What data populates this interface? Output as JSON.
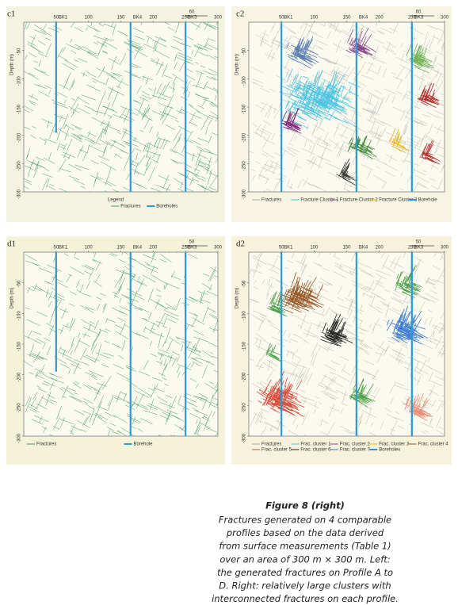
{
  "panels": [
    {
      "label": "c1",
      "x_ticks": [
        50,
        100,
        150,
        200,
        250,
        300
      ],
      "boreholes": [
        "BK1",
        "BK4",
        "BK3"
      ],
      "y_label": "Depth (m)",
      "y_ticks": [
        -50,
        -100,
        -150,
        -200,
        -250,
        -300
      ],
      "scale_label": "60",
      "legend_title": "Legend",
      "legend": [
        "Fractures",
        "Boreholes"
      ]
    },
    {
      "label": "c2",
      "x_ticks": [
        50,
        100,
        150,
        200,
        250,
        300
      ],
      "boreholes": [
        "BK1",
        "BK4",
        "BK3"
      ],
      "y_label": "Depth (m)",
      "y_ticks": [
        -50,
        -100,
        -150,
        -200,
        -250,
        -300
      ],
      "scale_label": "60",
      "legend": [
        "Fractures",
        "Fracture Cluster 1",
        "Fracture Cluster 2",
        "Fracture Cluster 3",
        "Borehole"
      ]
    },
    {
      "label": "d1",
      "x_ticks": [
        50,
        100,
        150,
        200,
        250,
        300
      ],
      "boreholes": [
        "BK1",
        "BK4",
        "BK3"
      ],
      "y_label": "Depth (m)",
      "y_ticks": [
        -50,
        -100,
        -150,
        -200,
        -250,
        -300
      ],
      "scale_label": "50",
      "legend": [
        "Fractures",
        "Borehole"
      ]
    },
    {
      "label": "d2",
      "x_ticks": [
        50,
        100,
        150,
        200,
        250,
        300
      ],
      "boreholes": [
        "BK1",
        "BK4",
        "BK3"
      ],
      "y_label": "Depth (m)",
      "y_ticks": [
        -50,
        -100,
        -150,
        -200,
        -250,
        -300
      ],
      "scale_label": "50",
      "legend": [
        "Fractures",
        "Frac. cluster 1",
        "Frac. cluster 2",
        "Frac. cluster 3",
        "Frac. cluster 4",
        "Frac. cluster 5",
        "Frac. cluster 6",
        "Frac. cluster 7",
        "Boreholes"
      ]
    }
  ],
  "caption": {
    "title": "Figure 8  (right)",
    "lines": [
      "Fractures generated on 4 comparable",
      "profiles based on the data derived",
      "from surface measurements (Table 1)",
      "over an area of 300 m × 300 m. Left:",
      "the generated fractures on Profile A to",
      "D. Right: relatively large clusters with",
      "interconnected fractures on each profile."
    ]
  }
}
